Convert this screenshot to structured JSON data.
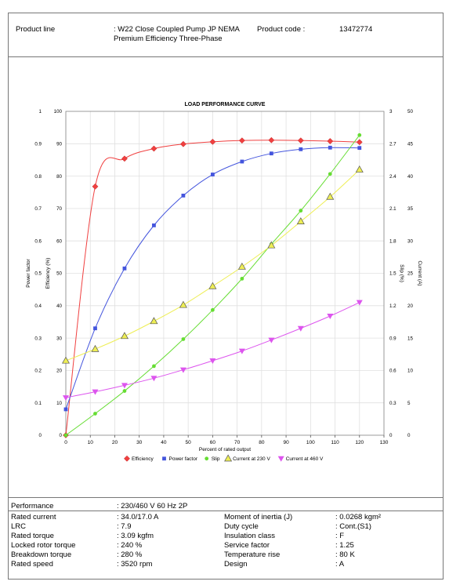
{
  "header": {
    "product_line_label": "Product line",
    "product_line_value": ": W22 Close Coupled Pump JP NEMA Premium Efficiency Three-Phase",
    "product_code_label": "Product code :",
    "product_code_value": "13472774"
  },
  "chart_data": {
    "type": "line",
    "title": "LOAD PERFORMANCE CURVE",
    "xlabel": "Percent of rated output",
    "xlim": [
      0,
      130
    ],
    "x_ticks": [
      0,
      10,
      20,
      30,
      40,
      50,
      60,
      70,
      80,
      90,
      100,
      110,
      120,
      130
    ],
    "axes": {
      "power_factor": {
        "label": "Power factor",
        "lim": [
          0,
          1
        ],
        "ticks": [
          "0",
          "0.1",
          "0.2",
          "0.3",
          "0.4",
          "0.5",
          "0.6",
          "0.7",
          "0.8",
          "0.9",
          "1"
        ]
      },
      "efficiency": {
        "label": "Efficiency (%)",
        "lim": [
          0,
          100
        ],
        "ticks": [
          "0",
          "10",
          "20",
          "30",
          "40",
          "50",
          "60",
          "70",
          "80",
          "90",
          "100"
        ]
      },
      "slip": {
        "label": "Slip (%)",
        "lim": [
          0,
          3
        ],
        "ticks": [
          "0",
          "0.3",
          "0.6",
          "0.9",
          "1.2",
          "1.5",
          "1.8",
          "2.1",
          "2.4",
          "2.7",
          "3"
        ]
      },
      "current": {
        "label": "Current (A)",
        "lim": [
          0,
          50
        ],
        "ticks": [
          "0",
          "5",
          "10",
          "15",
          "20",
          "25",
          "30",
          "35",
          "40",
          "45",
          "50"
        ]
      }
    },
    "legend_position": "bottom",
    "grid": true,
    "series": [
      {
        "name": "Efficiency",
        "axis": "efficiency",
        "color": "#f04040",
        "marker": "diamond",
        "x": [
          0,
          12,
          24,
          36,
          48,
          60,
          72,
          84,
          96,
          108,
          120
        ],
        "y": [
          0,
          76.8,
          85.4,
          88.5,
          89.9,
          90.6,
          91.0,
          91.1,
          91.0,
          90.8,
          90.5
        ]
      },
      {
        "name": "Power factor",
        "axis": "power_factor",
        "color": "#4455dd",
        "marker": "square",
        "x": [
          0,
          12,
          24,
          36,
          48,
          60,
          72,
          84,
          96,
          108,
          120
        ],
        "y": [
          0.08,
          0.33,
          0.515,
          0.648,
          0.74,
          0.805,
          0.845,
          0.87,
          0.883,
          0.888,
          0.887
        ]
      },
      {
        "name": "Slip",
        "axis": "slip",
        "color": "#66dd33",
        "marker": "circle",
        "x": [
          0,
          12,
          24,
          36,
          48,
          60,
          72,
          84,
          96,
          108,
          120
        ],
        "y": [
          0,
          0.2,
          0.41,
          0.64,
          0.89,
          1.16,
          1.45,
          1.77,
          2.08,
          2.42,
          2.78
        ]
      },
      {
        "name": "Current at 230 V",
        "axis": "current",
        "color": "#eeee55",
        "marker": "triangle-up",
        "x": [
          0,
          12,
          24,
          36,
          48,
          60,
          72,
          84,
          96,
          108,
          120
        ],
        "y": [
          11.5,
          13.3,
          15.3,
          17.6,
          20.1,
          23.0,
          26.0,
          29.3,
          33.0,
          36.8,
          41.0
        ]
      },
      {
        "name": "Current at 460 V",
        "axis": "current",
        "color": "#dd55ee",
        "marker": "triangle-down",
        "x": [
          0,
          12,
          24,
          36,
          48,
          60,
          72,
          84,
          96,
          108,
          120
        ],
        "y": [
          5.8,
          6.7,
          7.7,
          8.8,
          10.1,
          11.5,
          13.0,
          14.7,
          16.5,
          18.4,
          20.5
        ]
      }
    ]
  },
  "performance": {
    "label": "Performance",
    "value": ": 230/460 V 60 Hz 2P"
  },
  "specs_left": [
    {
      "label": "Rated current",
      "value": ": 34.0/17.0 A"
    },
    {
      "label": "LRC",
      "value": ": 7.9"
    },
    {
      "label": "Rated torque",
      "value": ": 3.09 kgfm"
    },
    {
      "label": "Locked rotor torque",
      "value": ": 240 %"
    },
    {
      "label": "Breakdown torque",
      "value": ": 280 %"
    },
    {
      "label": "Rated speed",
      "value": ": 3520 rpm"
    }
  ],
  "specs_right": [
    {
      "label": "Moment of inertia (J)",
      "value": ": 0.0268 kgm²"
    },
    {
      "label": "Duty cycle",
      "value": ": Cont.(S1)"
    },
    {
      "label": "Insulation class",
      "value": ": F"
    },
    {
      "label": "Service factor",
      "value": ": 1.25"
    },
    {
      "label": "Temperature rise",
      "value": ": 80 K"
    },
    {
      "label": "Design",
      "value": ": A"
    }
  ]
}
